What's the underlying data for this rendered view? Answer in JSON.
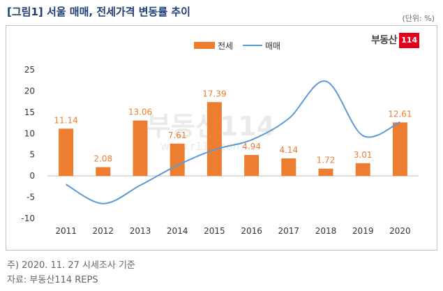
{
  "title": "[그림1] 서울 매매, 전세가격 변동률 추이",
  "unit": "(단위: %)",
  "logo": {
    "text": "부동산",
    "number": "114"
  },
  "watermark": {
    "text": "부동산114",
    "url": "www.r114.com"
  },
  "colors": {
    "bar": "#ed7d31",
    "line": "#5b9bd5",
    "title": "#1f3c73"
  },
  "chart_data": {
    "type": "bar",
    "categories": [
      "2011",
      "2012",
      "2013",
      "2014",
      "2015",
      "2016",
      "2017",
      "2018",
      "2019",
      "2020"
    ],
    "series": [
      {
        "name": "전세",
        "type": "bar",
        "values": [
          11.14,
          2.08,
          13.06,
          7.61,
          17.39,
          4.94,
          4.14,
          1.72,
          3.01,
          12.61
        ]
      },
      {
        "name": "매매",
        "type": "line",
        "values": [
          -2.0,
          -6.5,
          -2.2,
          2.5,
          6.2,
          8.5,
          13.5,
          22.3,
          9.5,
          12.7
        ]
      }
    ],
    "ylim": [
      -10,
      25
    ],
    "yticks": [
      -10,
      -5,
      0,
      5,
      10,
      15,
      20,
      25
    ],
    "legend": "top-center",
    "grid": false
  },
  "notes": {
    "line1": "주) 2020. 11. 27 시세조사 기준",
    "line2": "자료: 부동산114 REPS"
  }
}
